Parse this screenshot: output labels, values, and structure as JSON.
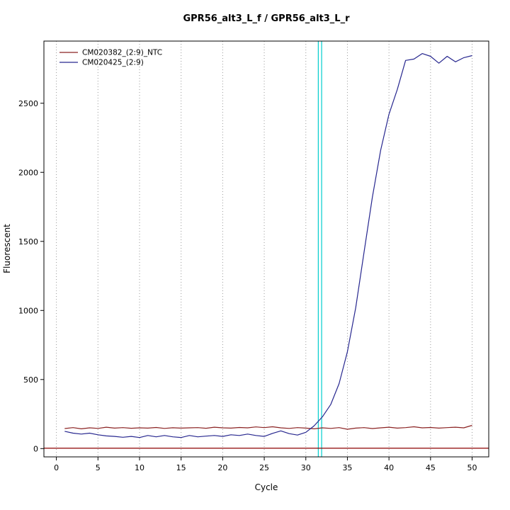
{
  "chart": {
    "title": "GPR56_alt3_L_f / GPR56_alt3_L_r",
    "xlabel": "Cycle",
    "ylabel": "Fluorescent"
  },
  "chart_data": {
    "type": "line",
    "title": "GPR56_alt3_L_f / GPR56_alt3_L_r",
    "xlabel": "Cycle",
    "ylabel": "Fluorescent",
    "xlim": [
      -1.5,
      52
    ],
    "ylim": [
      -60,
      2950
    ],
    "x_ticks": [
      0,
      5,
      10,
      15,
      20,
      25,
      30,
      35,
      40,
      45,
      50
    ],
    "y_ticks": [
      0,
      500,
      1000,
      1500,
      2000,
      2500
    ],
    "grid": "vertical-dotted",
    "grid_color": "#999999",
    "legend_position": "top-left",
    "x": [
      1,
      2,
      3,
      4,
      5,
      6,
      7,
      8,
      9,
      10,
      11,
      12,
      13,
      14,
      15,
      16,
      17,
      18,
      19,
      20,
      21,
      22,
      23,
      24,
      25,
      26,
      27,
      28,
      29,
      30,
      31,
      32,
      33,
      34,
      35,
      36,
      37,
      38,
      39,
      40,
      41,
      42,
      43,
      44,
      45,
      46,
      47,
      48,
      49,
      50
    ],
    "series": [
      {
        "name": "CM020382_(2:9)_NTC",
        "color": "#8B2323",
        "values": [
          145,
          152,
          143,
          150,
          146,
          155,
          148,
          152,
          147,
          150,
          148,
          153,
          146,
          151,
          148,
          150,
          152,
          147,
          155,
          150,
          148,
          153,
          150,
          157,
          152,
          158,
          150,
          146,
          152,
          148,
          143,
          150,
          146,
          152,
          140,
          148,
          152,
          145,
          150,
          155,
          148,
          152,
          158,
          150,
          153,
          148,
          152,
          155,
          150,
          168
        ]
      },
      {
        "name": "CM020425_(2:9)",
        "color": "#27278F",
        "values": [
          125,
          112,
          105,
          112,
          100,
          92,
          88,
          82,
          88,
          80,
          95,
          85,
          95,
          85,
          80,
          95,
          85,
          90,
          95,
          88,
          100,
          95,
          105,
          95,
          88,
          110,
          128,
          108,
          98,
          118,
          165,
          230,
          320,
          470,
          700,
          1020,
          1420,
          1820,
          2160,
          2420,
          2600,
          2810,
          2820,
          2860,
          2840,
          2790,
          2840,
          2800,
          2830,
          2845
        ]
      }
    ],
    "threshold_line": {
      "y": 3,
      "color": "#8B0000"
    },
    "ct_marker": {
      "x1": 31.5,
      "x2": 31.9,
      "color": "#00CDCD"
    }
  }
}
